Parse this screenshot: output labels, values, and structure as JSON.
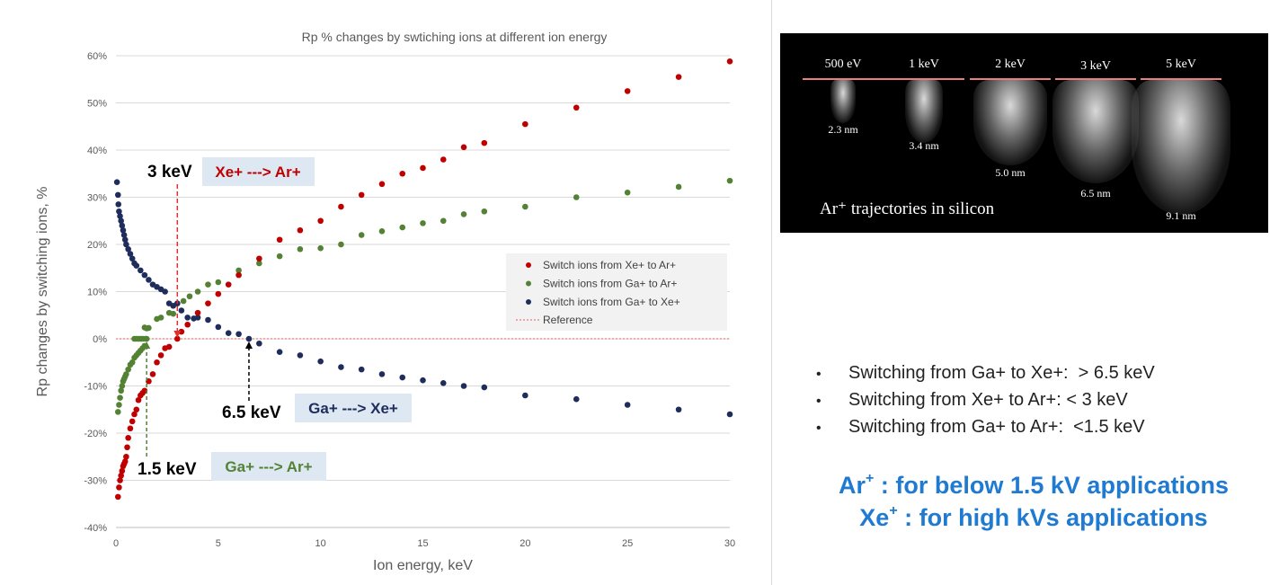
{
  "chart_data": {
    "type": "scatter",
    "title": "Rp % changes by swtiching ions at different ion energy",
    "xlabel": "Ion energy, keV",
    "ylabel": "Rp changes by switching ions,  %",
    "xlim": [
      0,
      30
    ],
    "ylim": [
      -40,
      60
    ],
    "x_ticks": [
      "0",
      "5",
      "10",
      "15",
      "20",
      "25",
      "30"
    ],
    "y_ticks": [
      "-40%",
      "-30%",
      "-20%",
      "-10%",
      "0%",
      "10%",
      "20%",
      "30%",
      "40%",
      "50%",
      "60%"
    ],
    "grid": "horizontal",
    "legend_position": "center-right",
    "series": [
      {
        "name": "Switch ions from Xe+  to Ar+",
        "color": "#c00000",
        "points": [
          [
            0.1,
            -33.5
          ],
          [
            0.15,
            -31.5
          ],
          [
            0.2,
            -30
          ],
          [
            0.25,
            -29
          ],
          [
            0.3,
            -28
          ],
          [
            0.35,
            -27
          ],
          [
            0.4,
            -26.5
          ],
          [
            0.45,
            -26
          ],
          [
            0.5,
            -25
          ],
          [
            0.55,
            -23
          ],
          [
            0.6,
            -21
          ],
          [
            0.7,
            -19
          ],
          [
            0.8,
            -17.5
          ],
          [
            0.9,
            -16
          ],
          [
            1.0,
            -15
          ],
          [
            1.1,
            -13
          ],
          [
            1.2,
            -12
          ],
          [
            1.3,
            -11.5
          ],
          [
            1.4,
            -11
          ],
          [
            1.6,
            -9
          ],
          [
            1.8,
            -7.5
          ],
          [
            2.0,
            -5
          ],
          [
            2.2,
            -3.5
          ],
          [
            2.4,
            -2
          ],
          [
            2.6,
            -1.7
          ],
          [
            3.0,
            0
          ],
          [
            3.2,
            1.5
          ],
          [
            3.5,
            3
          ],
          [
            4.0,
            5.5
          ],
          [
            4.5,
            7.5
          ],
          [
            5.0,
            9.5
          ],
          [
            5.5,
            11.5
          ],
          [
            6.0,
            13.5
          ],
          [
            7.0,
            17
          ],
          [
            8.0,
            21
          ],
          [
            9.0,
            23
          ],
          [
            10.0,
            25
          ],
          [
            11.0,
            28
          ],
          [
            12.0,
            30.5
          ],
          [
            13.0,
            32.8
          ],
          [
            14.0,
            35
          ],
          [
            15.0,
            36.2
          ],
          [
            16.0,
            38
          ],
          [
            17.0,
            40.6
          ],
          [
            18.0,
            41.5
          ],
          [
            20.0,
            45.5
          ],
          [
            22.5,
            49
          ],
          [
            25.0,
            52.5
          ],
          [
            27.5,
            55.5
          ],
          [
            30.0,
            58.8
          ]
        ]
      },
      {
        "name": "Switch ions from Ga+  to Ar+",
        "color": "#548235",
        "points": [
          [
            0.1,
            -15.5
          ],
          [
            0.15,
            -14
          ],
          [
            0.2,
            -12.5
          ],
          [
            0.25,
            -11
          ],
          [
            0.3,
            -10
          ],
          [
            0.35,
            -9
          ],
          [
            0.4,
            -8.5
          ],
          [
            0.45,
            -8
          ],
          [
            0.5,
            -7.5
          ],
          [
            0.6,
            -6.5
          ],
          [
            0.7,
            -5.5
          ],
          [
            0.8,
            -5
          ],
          [
            0.9,
            -4
          ],
          [
            1.0,
            -3.5
          ],
          [
            1.1,
            -3
          ],
          [
            1.2,
            -2.5
          ],
          [
            1.3,
            -2
          ],
          [
            1.4,
            -1.5
          ],
          [
            0.9,
            0
          ],
          [
            1.0,
            0
          ],
          [
            1.1,
            0
          ],
          [
            1.2,
            0
          ],
          [
            1.3,
            0
          ],
          [
            1.45,
            0
          ],
          [
            1.5,
            0
          ],
          [
            1.4,
            2.4
          ],
          [
            1.5,
            2.2
          ],
          [
            1.6,
            2.3
          ],
          [
            2.0,
            4.2
          ],
          [
            2.2,
            4.5
          ],
          [
            2.6,
            5.5
          ],
          [
            2.8,
            5.3
          ],
          [
            3.0,
            7.5
          ],
          [
            3.3,
            8
          ],
          [
            3.6,
            9
          ],
          [
            4.0,
            10
          ],
          [
            4.5,
            11.5
          ],
          [
            5.0,
            12
          ],
          [
            6.0,
            14.5
          ],
          [
            7.0,
            16
          ],
          [
            8.0,
            17.5
          ],
          [
            9.0,
            19
          ],
          [
            10.0,
            19.2
          ],
          [
            11.0,
            20
          ],
          [
            12.0,
            22
          ],
          [
            13.0,
            22.8
          ],
          [
            14.0,
            23.6
          ],
          [
            15.0,
            24.5
          ],
          [
            16.0,
            25
          ],
          [
            17.0,
            26.4
          ],
          [
            18.0,
            27
          ],
          [
            20.0,
            28
          ],
          [
            22.5,
            30
          ],
          [
            25.0,
            31
          ],
          [
            27.5,
            32.2
          ],
          [
            30.0,
            33.5
          ]
        ]
      },
      {
        "name": "Switch ions from Ga+  to Xe+",
        "color": "#1f2d5c",
        "points": [
          [
            0.05,
            33.2
          ],
          [
            0.1,
            30.5
          ],
          [
            0.12,
            28.5
          ],
          [
            0.15,
            27
          ],
          [
            0.2,
            26
          ],
          [
            0.25,
            25
          ],
          [
            0.3,
            24
          ],
          [
            0.35,
            23
          ],
          [
            0.4,
            22
          ],
          [
            0.45,
            21
          ],
          [
            0.5,
            20
          ],
          [
            0.6,
            19
          ],
          [
            0.7,
            18
          ],
          [
            0.8,
            17
          ],
          [
            0.9,
            16
          ],
          [
            1.0,
            15.5
          ],
          [
            1.2,
            14.5
          ],
          [
            1.4,
            13.5
          ],
          [
            1.6,
            12.5
          ],
          [
            1.8,
            11.5
          ],
          [
            2.0,
            11
          ],
          [
            2.2,
            10.5
          ],
          [
            2.4,
            10
          ],
          [
            2.6,
            7.5
          ],
          [
            2.8,
            7
          ],
          [
            3.0,
            7.5
          ],
          [
            3.2,
            6
          ],
          [
            3.5,
            4.5
          ],
          [
            3.8,
            4.3
          ],
          [
            4.0,
            4.5
          ],
          [
            4.5,
            4
          ],
          [
            5.0,
            2.5
          ],
          [
            5.5,
            1.2
          ],
          [
            6.0,
            1
          ],
          [
            6.5,
            0
          ],
          [
            7.0,
            -1
          ],
          [
            8.0,
            -2.8
          ],
          [
            9.0,
            -3.5
          ],
          [
            10.0,
            -4.8
          ],
          [
            11.0,
            -6
          ],
          [
            12.0,
            -6.5
          ],
          [
            13.0,
            -7.5
          ],
          [
            14.0,
            -8.2
          ],
          [
            15.0,
            -8.8
          ],
          [
            16.0,
            -9.4
          ],
          [
            17.0,
            -10
          ],
          [
            18.0,
            -10.3
          ],
          [
            20.0,
            -12
          ],
          [
            22.5,
            -12.8
          ],
          [
            25.0,
            -14
          ],
          [
            27.5,
            -15
          ],
          [
            30.0,
            -16
          ]
        ]
      },
      {
        "name": "Reference",
        "color": "#e06060",
        "points": [
          [
            0,
            0
          ],
          [
            30,
            0
          ]
        ]
      }
    ],
    "annotations": [
      {
        "text": "3 keV",
        "x": 3,
        "y": 36,
        "arrow_to": 0,
        "color": "#000000"
      },
      {
        "text": "Xe+ ---> Ar+",
        "color": "#c00000"
      },
      {
        "text": "6.5 keV",
        "x": 6.5,
        "y": -8,
        "arrow_to": 0,
        "color": "#000000"
      },
      {
        "text": "Ga+ ---> Xe+",
        "color": "#1f2d5c"
      },
      {
        "text": "1.5 keV",
        "x": 1.5,
        "y": -22,
        "arrow_to": 0,
        "color": "#000000"
      },
      {
        "text": "Ga+ ---> Ar+",
        "color": "#548235"
      }
    ]
  },
  "simulation": {
    "energies": [
      "500 eV",
      "1 keV",
      "2 keV",
      "3 keV",
      "5 keV"
    ],
    "depths": [
      "2.3 nm",
      "3.4 nm",
      "5.0 nm",
      "6.5 nm",
      "9.1 nm"
    ],
    "caption": "Ar⁺ trajectories in silicon"
  },
  "bullets": [
    "Switching from Ga+ to Xe+:  > 6.5 keV",
    "Switching from Xe+ to Ar+: < 3 keV",
    "Switching from Ga+ to Ar+:  <1.5 keV"
  ],
  "bullet_symbol": "•",
  "recommendations": [
    {
      "ion": "Ar",
      "charge": "+",
      "text": " : for below 1.5 kV applications"
    },
    {
      "ion": "Xe",
      "charge": "+",
      "text": " : for high kVs applications"
    }
  ],
  "colors": {
    "recommendation_text": "#1f7ad1",
    "label_box": "#dde8f3"
  }
}
